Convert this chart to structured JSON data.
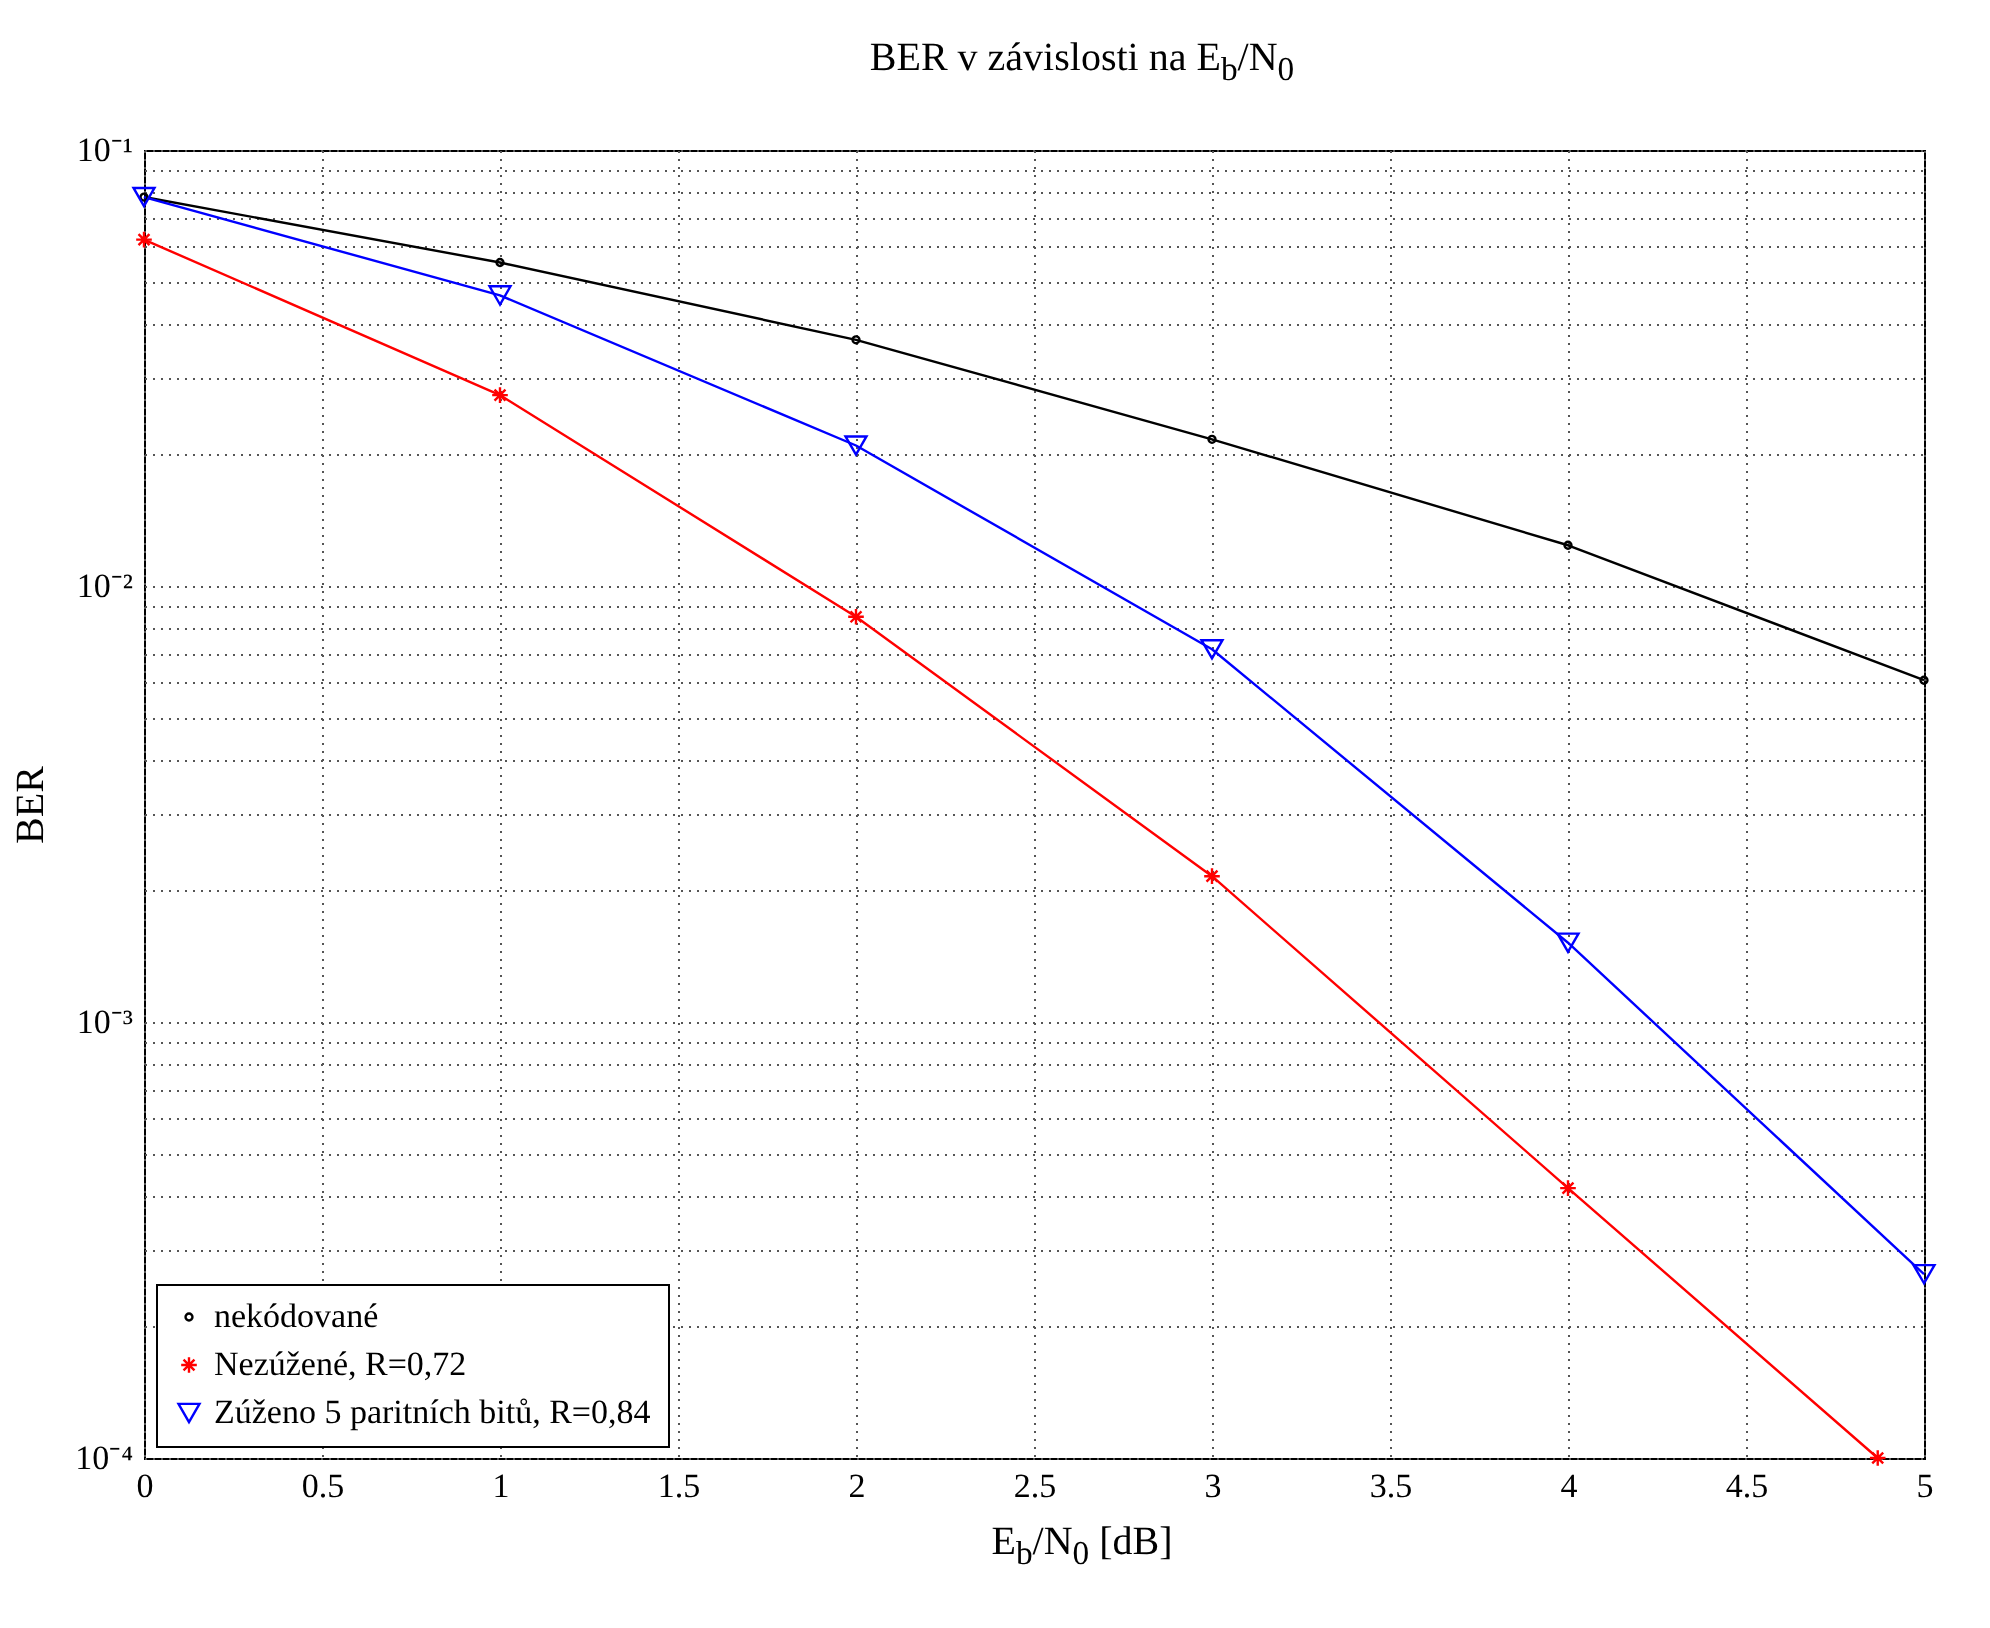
{
  "chart_data": {
    "type": "line",
    "title": "BER v závislosti na E$_{b}$/N$_{0}$",
    "xlabel": "E$_{b}$/N$_{0}$ [dB]",
    "ylabel": "BER",
    "x": [
      0,
      1,
      2,
      3,
      4,
      5
    ],
    "series": [
      {
        "name": "nekódované",
        "color": "#000000",
        "marker": "circle",
        "values": [
          0.078,
          0.0552,
          0.0367,
          0.0217,
          0.0124,
          0.00608
        ]
      },
      {
        "name": "Nezúžené, R=0,72",
        "color": "#ff0000",
        "marker": "cross",
        "x": [
          0,
          1,
          2,
          3,
          4,
          4.87
        ],
        "values": [
          0.0623,
          0.0274,
          0.0085,
          0.00216,
          0.000416,
          0.0001
        ]
      },
      {
        "name": "Zúženo 5 paritních bitů, R=0,84",
        "color": "#0000ff",
        "marker": "triangle",
        "values": [
          0.078,
          0.0464,
          0.021,
          0.00716,
          0.00152,
          0.000264
        ]
      }
    ],
    "log": true,
    "grid": true,
    "line_style": "solid",
    "legend": "bottom left",
    "xlim": [
      0,
      5
    ],
    "xticks": [
      0,
      0.5,
      1,
      1.5,
      2,
      2.5,
      3,
      3.5,
      4,
      4.5,
      5
    ],
    "ylim": [
      0.0001,
      0.1
    ],
    "yticks": [
      {
        "value": 0.0001,
        "label": "10⁻⁴"
      },
      {
        "value": 0.0002,
        "label": null
      },
      {
        "value": 0.0003,
        "label": null
      },
      {
        "value": 0.0004,
        "label": null
      },
      {
        "value": 0.0005,
        "label": null
      },
      {
        "value": 0.0006,
        "label": null
      },
      {
        "value": 0.0007,
        "label": null
      },
      {
        "value": 0.0008,
        "label": null
      },
      {
        "value": 0.0009,
        "label": null
      },
      {
        "value": 0.001,
        "label": "10⁻³"
      },
      {
        "value": 0.002,
        "label": null
      },
      {
        "value": 0.003,
        "label": null
      },
      {
        "value": 0.004,
        "label": null
      },
      {
        "value": 0.005,
        "label": null
      },
      {
        "value": 0.006,
        "label": null
      },
      {
        "value": 0.007,
        "label": null
      },
      {
        "value": 0.008,
        "label": null
      },
      {
        "value": 0.009,
        "label": null
      },
      {
        "value": 0.01,
        "label": "10⁻²"
      },
      {
        "value": 0.02,
        "label": null
      },
      {
        "value": 0.03,
        "label": null
      },
      {
        "value": 0.04,
        "label": null
      },
      {
        "value": 0.05,
        "label": null
      },
      {
        "value": 0.06,
        "label": null
      },
      {
        "value": 0.07,
        "label": null
      },
      {
        "value": 0.08,
        "label": null
      },
      {
        "value": 0.09,
        "label": null
      },
      {
        "value": 0.1,
        "label": "10⁻¹"
      }
    ]
  }
}
